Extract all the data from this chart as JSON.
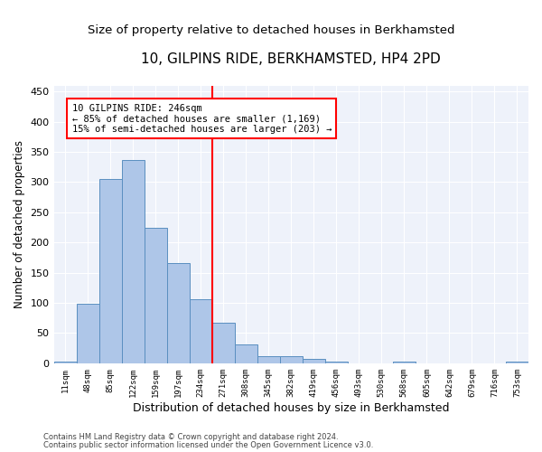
{
  "title": "10, GILPINS RIDE, BERKHAMSTED, HP4 2PD",
  "subtitle": "Size of property relative to detached houses in Berkhamsted",
  "xlabel": "Distribution of detached houses by size in Berkhamsted",
  "ylabel": "Number of detached properties",
  "bar_labels": [
    "11sqm",
    "48sqm",
    "85sqm",
    "122sqm",
    "159sqm",
    "197sqm",
    "234sqm",
    "271sqm",
    "308sqm",
    "345sqm",
    "382sqm",
    "419sqm",
    "456sqm",
    "493sqm",
    "530sqm",
    "568sqm",
    "605sqm",
    "642sqm",
    "679sqm",
    "716sqm",
    "753sqm"
  ],
  "bar_values": [
    3,
    99,
    305,
    337,
    225,
    166,
    106,
    67,
    31,
    11,
    11,
    7,
    3,
    0,
    0,
    3,
    0,
    0,
    0,
    0,
    2
  ],
  "bar_color": "#aec6e8",
  "bar_edge_color": "#5a8fc0",
  "vline_x": 6.5,
  "vline_color": "red",
  "annotation_text": "10 GILPINS RIDE: 246sqm\n← 85% of detached houses are smaller (1,169)\n15% of semi-detached houses are larger (203) →",
  "annotation_box_color": "white",
  "annotation_box_edge_color": "red",
  "ylim": [
    0,
    460
  ],
  "yticks": [
    0,
    50,
    100,
    150,
    200,
    250,
    300,
    350,
    400,
    450
  ],
  "footnote1": "Contains HM Land Registry data © Crown copyright and database right 2024.",
  "footnote2": "Contains public sector information licensed under the Open Government Licence v3.0.",
  "bg_color": "#eef2fa",
  "title_fontsize": 11,
  "subtitle_fontsize": 9.5,
  "xlabel_fontsize": 9,
  "ylabel_fontsize": 8.5
}
